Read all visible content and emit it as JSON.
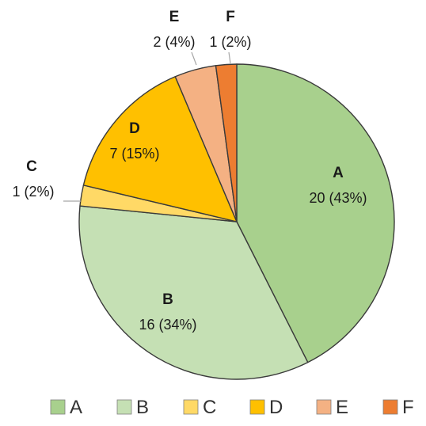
{
  "chart_data": {
    "type": "pie",
    "title": "",
    "categories": [
      "A",
      "B",
      "C",
      "D",
      "E",
      "F"
    ],
    "values": [
      20,
      16,
      1,
      7,
      2,
      1
    ],
    "percent_labels": [
      "43%",
      "34%",
      "2%",
      "15%",
      "4%",
      "2%"
    ],
    "data_labels": [
      "20 (43%)",
      "16 (34%)",
      "1 (2%)",
      "7 (15%)",
      "2 (4%)",
      "1 (2%)"
    ],
    "colors": [
      "#a8d08d",
      "#c5e0b4",
      "#ffd966",
      "#ffc000",
      "#f4b183",
      "#ed7d31"
    ],
    "start_angle": "12 o'clock",
    "direction": "clockwise",
    "legend": {
      "position": "bottom",
      "entries": [
        "A",
        "B",
        "C",
        "D",
        "E",
        "F"
      ]
    }
  }
}
